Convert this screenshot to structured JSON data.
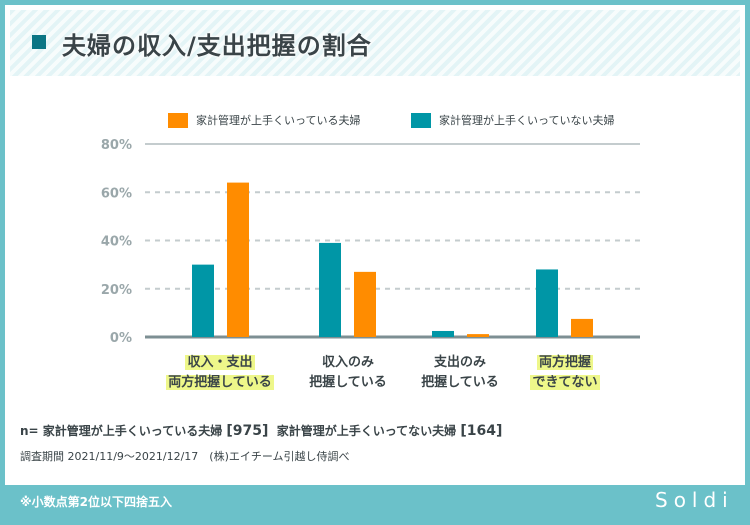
{
  "title": "夫婦の収入/支出把握の割合",
  "colors": {
    "good": "#ff8c00",
    "bad": "#0096a6",
    "frame": "#6bc1c9",
    "highlight": "#eef78a"
  },
  "chart_data": {
    "type": "bar",
    "categories": [
      [
        "収入・支出",
        "両方把握している"
      ],
      [
        "収入のみ",
        "把握している"
      ],
      [
        "支出のみ",
        "把握している"
      ],
      [
        "両方把握",
        "できてない"
      ]
    ],
    "highlighted_categories": [
      0,
      3
    ],
    "series": [
      {
        "name": "家計管理が上手くいっていない夫婦",
        "color": "#0096a6",
        "values": [
          30,
          39,
          2.5,
          28
        ]
      },
      {
        "name": "家計管理が上手くいっている夫婦",
        "color": "#ff8c00",
        "values": [
          64,
          27,
          1.2,
          7.5
        ]
      }
    ],
    "legend_order": [
      1,
      0
    ],
    "yticks": [
      "0%",
      "20%",
      "40%",
      "60%",
      "80%"
    ],
    "ylim": [
      0,
      80
    ],
    "grid": true,
    "legend": "top"
  },
  "sample": {
    "prefix": "n=",
    "g1": "家計管理が上手くいっている夫婦",
    "n1": "[975]",
    "g2": "家計管理が上手くいってない夫婦",
    "n2": "[164]"
  },
  "period": "調査期間 2021/11/9〜2021/12/17　(株)エイチーム引越し侍調べ",
  "note": "※小数点第2位以下四捨五入",
  "logo": "Soldi"
}
